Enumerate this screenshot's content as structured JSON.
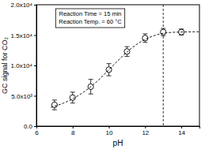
{
  "chart_data": {
    "type": "scatter",
    "x_label": "pH",
    "y_label": "GC signal for CO₂",
    "annotations": [
      "Reaction Time = 15 min",
      "Reaction Temp. = 60 °C"
    ],
    "xlim": [
      6,
      15
    ],
    "xticks": [
      6,
      8,
      10,
      12,
      14
    ],
    "ylim": [
      0,
      20000
    ],
    "yticks": [
      {
        "value": 0,
        "label": "0.0"
      },
      {
        "value": 5000,
        "label": "5.0x10³"
      },
      {
        "value": 10000,
        "label": "1.0x10⁴"
      },
      {
        "value": 15000,
        "label": "1.5x10⁴"
      },
      {
        "value": 20000,
        "label": "2.0x10⁴"
      }
    ],
    "reference_lines": [
      {
        "x": 13,
        "line_style": "dashed"
      }
    ],
    "series": [
      {
        "type": "scatter",
        "marker": "circle",
        "color": "#000000",
        "x": [
          7,
          8,
          9,
          10,
          11,
          12,
          13,
          14
        ],
        "values": [
          3500,
          4700,
          6500,
          9300,
          12300,
          14500,
          15500,
          15500
        ],
        "errors": [
          800,
          900,
          1200,
          1000,
          800,
          700,
          600,
          500
        ]
      },
      {
        "type": "line",
        "line_style": "dashed",
        "color": "#000000",
        "x": [
          6.8,
          7.5,
          8,
          8.5,
          9,
          9.5,
          10,
          10.5,
          11,
          11.5,
          12,
          12.5,
          13,
          13.5,
          14,
          15
        ],
        "values": [
          3100,
          3800,
          4500,
          5400,
          6500,
          7800,
          9300,
          10800,
          12200,
          13400,
          14300,
          14900,
          15300,
          15450,
          15500,
          15550
        ]
      }
    ]
  }
}
